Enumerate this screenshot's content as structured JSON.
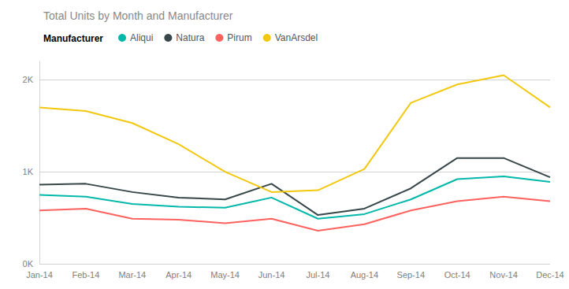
{
  "chart_data": {
    "type": "line",
    "title": "Total Units by Month and Manufacturer",
    "legend_title": "Manufacturer",
    "categories": [
      "Jan-14",
      "Feb-14",
      "Mar-14",
      "Apr-14",
      "May-14",
      "Jun-14",
      "Jul-14",
      "Aug-14",
      "Sep-14",
      "Oct-14",
      "Nov-14",
      "Dec-14"
    ],
    "series": [
      {
        "name": "Aliqui",
        "color": "#01B8AA",
        "values": [
          750,
          730,
          650,
          620,
          610,
          720,
          490,
          540,
          700,
          920,
          950,
          890
        ]
      },
      {
        "name": "Natura",
        "color": "#374649",
        "values": [
          860,
          870,
          780,
          720,
          700,
          870,
          530,
          600,
          820,
          1150,
          1150,
          940
        ]
      },
      {
        "name": "Pirum",
        "color": "#FD625E",
        "values": [
          580,
          600,
          490,
          480,
          440,
          490,
          360,
          430,
          580,
          680,
          730,
          680
        ]
      },
      {
        "name": "VanArsdel",
        "color": "#F2C80F",
        "values": [
          1700,
          1660,
          1530,
          1300,
          1000,
          780,
          800,
          1030,
          1750,
          1950,
          2050,
          1700
        ]
      }
    ],
    "ylim": [
      0,
      2200
    ],
    "yticks": [
      {
        "value": 0,
        "label": "0K"
      },
      {
        "value": 1000,
        "label": "1K"
      },
      {
        "value": 2000,
        "label": "2K"
      }
    ],
    "grid": true,
    "legend": "top-left"
  }
}
